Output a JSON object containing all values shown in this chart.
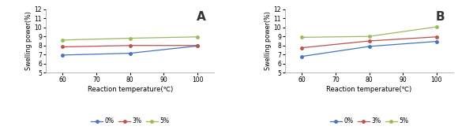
{
  "panels": [
    {
      "label": "A",
      "x": [
        60,
        80,
        100
      ],
      "series": {
        "0%": {
          "values": [
            6.95,
            7.15,
            7.95
          ],
          "color": "#4472C4",
          "marker": "o"
        },
        "3%": {
          "values": [
            7.85,
            8.0,
            8.0
          ],
          "color": "#C0504D",
          "marker": "o"
        },
        "5%": {
          "values": [
            8.6,
            8.8,
            8.95
          ],
          "color": "#9BBB59",
          "marker": "o"
        }
      },
      "ylim": [
        5,
        12
      ],
      "yticks": [
        5,
        6,
        7,
        8,
        9,
        10,
        11,
        12
      ],
      "ylabel": "Swelling power(%)",
      "xlabel": "Reaction temperature(℃)"
    },
    {
      "label": "B",
      "x": [
        60,
        80,
        100
      ],
      "series": {
        "0%": {
          "values": [
            6.8,
            7.9,
            8.45
          ],
          "color": "#4472C4",
          "marker": "o"
        },
        "3%": {
          "values": [
            7.75,
            8.5,
            8.95
          ],
          "color": "#C0504D",
          "marker": "o"
        },
        "5%": {
          "values": [
            8.9,
            9.0,
            10.05
          ],
          "color": "#9BBB59",
          "marker": "o"
        }
      },
      "ylim": [
        5,
        12
      ],
      "yticks": [
        5,
        6,
        7,
        8,
        9,
        10,
        11,
        12
      ],
      "ylabel": "Swelling power(%)",
      "xlabel": "Reaction temperature(℃)"
    }
  ],
  "legend_order": [
    "0%",
    "3%",
    "5%"
  ],
  "background_color": "#ffffff",
  "panel_bg": "#ffffff",
  "figsize": [
    5.8,
    1.65
  ],
  "dpi": 100
}
